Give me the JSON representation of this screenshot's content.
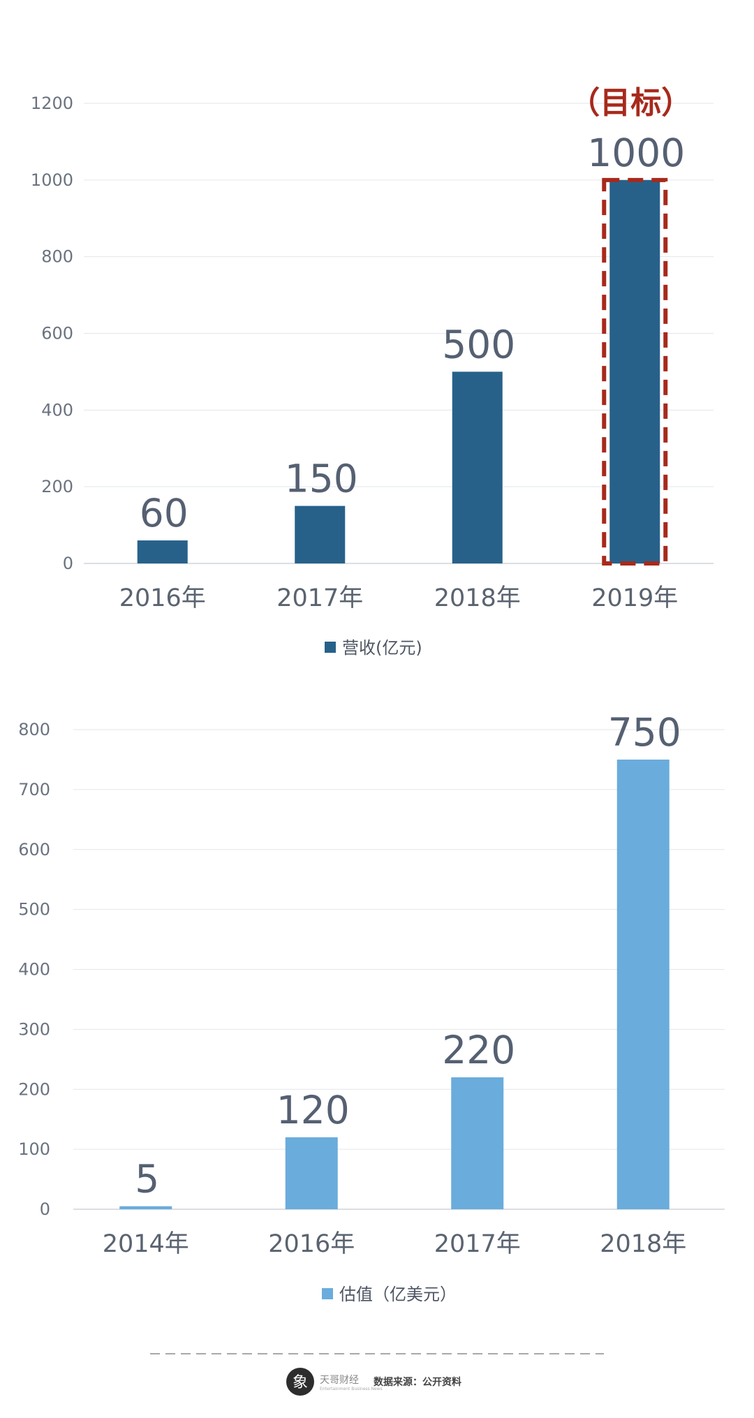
{
  "chart_data": [
    {
      "type": "bar",
      "categories": [
        "2016年",
        "2017年",
        "2018年",
        "2019年"
      ],
      "series": [
        {
          "name": "营收(亿元)",
          "values": [
            60,
            150,
            500,
            1000
          ]
        }
      ],
      "yticks": [
        "0",
        "200",
        "400",
        "600",
        "800",
        "1000",
        "1200"
      ],
      "ylim": [
        0,
        1200
      ],
      "grid": true,
      "legend_position": "bottom",
      "color": "#27618a",
      "annotation": {
        "category": "2019年",
        "text": "（目标）",
        "color": "#a72a1c",
        "style": "dashed-box"
      }
    },
    {
      "type": "bar",
      "categories": [
        "2014年",
        "2016年",
        "2017年",
        "2018年"
      ],
      "series": [
        {
          "name": "估值（亿美元）",
          "values": [
            5,
            120,
            220,
            750
          ]
        }
      ],
      "yticks": [
        "0",
        "100",
        "200",
        "300",
        "400",
        "500",
        "600",
        "700",
        "800"
      ],
      "ylim": [
        0,
        800
      ],
      "grid": true,
      "legend_position": "bottom",
      "color": "#6aacdc"
    }
  ],
  "footer": {
    "brand": "天哥财经",
    "brand_sub": "Entertainment Business News",
    "source": "数据来源：公开资料"
  },
  "colors": {
    "grid": "#e3e6ea",
    "axis": "#d0d4d9"
  },
  "icons": [
    "logo-icon",
    "legend-swatch-icon"
  ]
}
